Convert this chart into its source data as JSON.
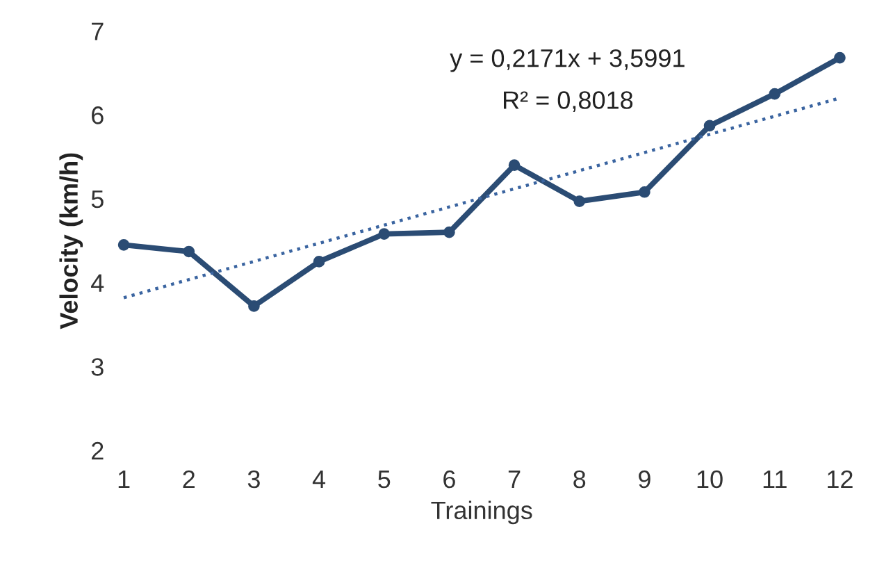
{
  "chart_data": {
    "type": "line",
    "xlabel": "Trainings",
    "ylabel": "Velocity (km/h)",
    "x": [
      1,
      2,
      3,
      4,
      5,
      6,
      7,
      8,
      9,
      10,
      11,
      12
    ],
    "xlim": [
      1,
      12
    ],
    "xticks": [
      1,
      2,
      3,
      4,
      5,
      6,
      7,
      8,
      9,
      10,
      11,
      12
    ],
    "ylim": [
      2,
      7
    ],
    "yticks": [
      2,
      3,
      4,
      5,
      6,
      7
    ],
    "grid": false,
    "legend": false,
    "series": [
      {
        "color": "#2b4c74",
        "marker": "circle",
        "line_style": "solid",
        "values": [
          4.45,
          4.37,
          3.72,
          4.25,
          4.58,
          4.6,
          5.4,
          4.97,
          5.08,
          5.87,
          6.25,
          6.68
        ]
      },
      {
        "color": "#3a64a0",
        "marker": "none",
        "line_style": "dotted",
        "x": [
          1,
          12
        ],
        "values": [
          3.82,
          6.2
        ]
      }
    ],
    "annotations": [
      "y = 0,2171x + 3,5991",
      "R² = 0,8018"
    ]
  }
}
